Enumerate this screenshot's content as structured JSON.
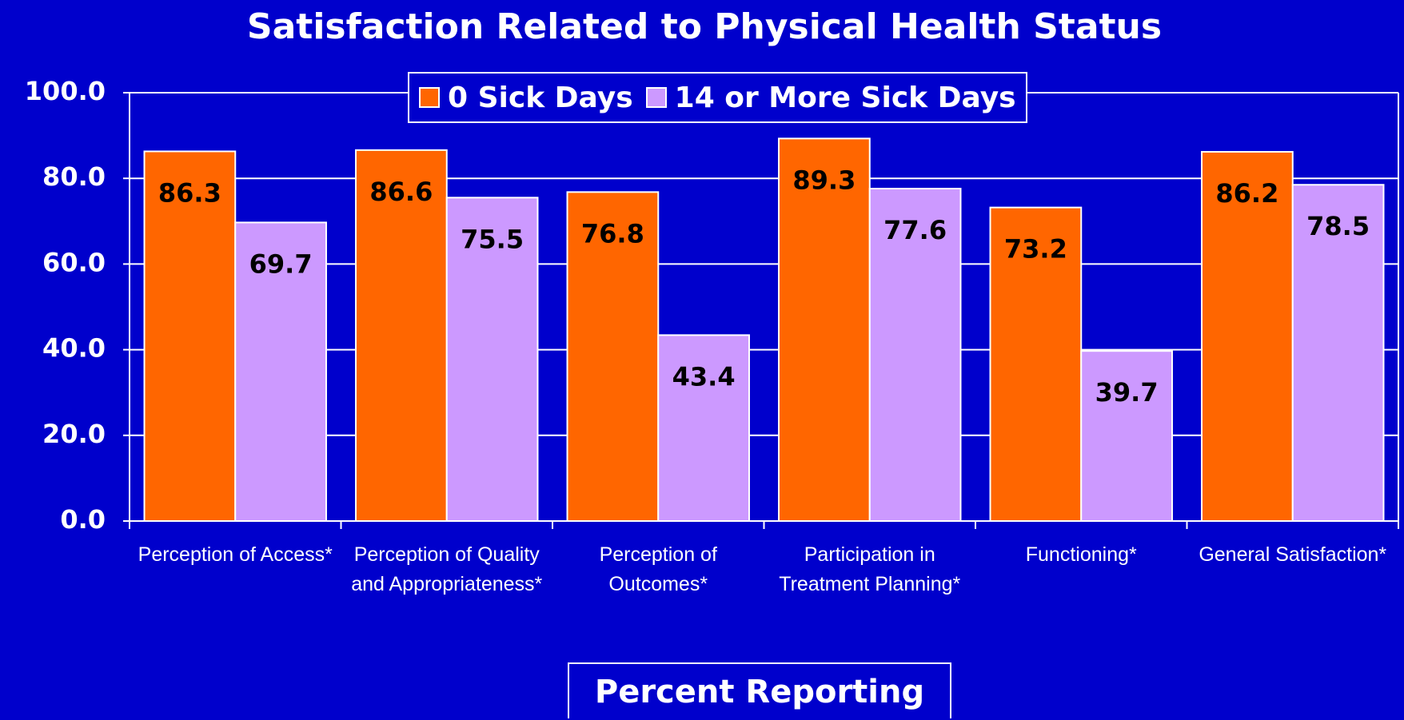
{
  "chart_data": {
    "type": "bar",
    "title": "Satisfaction Related to Physical Health Status",
    "x_label": "Percent Reporting",
    "categories": [
      "Perception of Access*",
      "Perception of Quality and Appropriateness*",
      "Perception of Outcomes*",
      "Participation in Treatment Planning*",
      "Functioning*",
      "General Satisfaction*"
    ],
    "series": [
      {
        "name": "0 Sick Days",
        "color": "#ff6600",
        "values": [
          86.3,
          86.6,
          76.8,
          89.3,
          73.2,
          86.2
        ]
      },
      {
        "name": "14 or More Sick Days",
        "color": "#cc99ff",
        "values": [
          69.7,
          75.5,
          43.4,
          77.6,
          39.7,
          78.5
        ]
      }
    ],
    "ylim": [
      0,
      100
    ],
    "yticks": [
      {
        "value": 0,
        "label": "0.0"
      },
      {
        "value": 20,
        "label": "20.0"
      },
      {
        "value": 40,
        "label": "40.0"
      },
      {
        "value": 60,
        "label": "60.0"
      },
      {
        "value": 80,
        "label": "80.0"
      },
      {
        "value": 100,
        "label": "100.0"
      }
    ],
    "grid": true,
    "legend": "top"
  }
}
